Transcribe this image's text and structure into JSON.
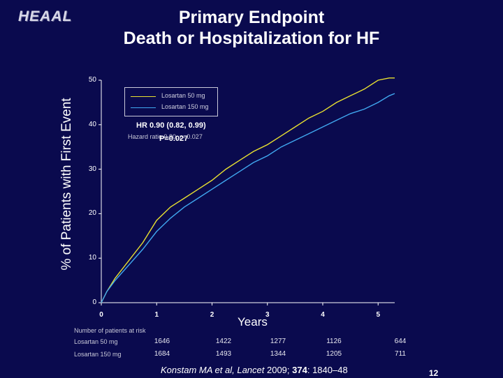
{
  "logo": "HEAAL",
  "title_line1": "Primary Endpoint",
  "title_line2": "Death or Hospitalization for HF",
  "chart_data": {
    "type": "line",
    "xlabel": "Years",
    "ylabel": "% of Patients with First Event",
    "xlim": [
      0,
      5.3
    ],
    "ylim": [
      0,
      50
    ],
    "xticks": [
      "0",
      "1",
      "2",
      "3",
      "4",
      "5"
    ],
    "yticks": [
      "0",
      "10",
      "20",
      "30",
      "40",
      "50"
    ],
    "grid": false,
    "legend_position": "top-left",
    "series": [
      {
        "name": "Losartan 50 mg",
        "color": "#e8e030",
        "x": [
          0,
          0.1,
          0.25,
          0.5,
          0.75,
          1.0,
          1.25,
          1.5,
          1.75,
          2.0,
          2.25,
          2.5,
          2.75,
          3.0,
          3.25,
          3.5,
          3.75,
          4.0,
          4.25,
          4.5,
          4.75,
          5.0,
          5.2,
          5.3
        ],
        "y": [
          0,
          2.5,
          5.5,
          9.5,
          13.5,
          18.5,
          21.5,
          23.5,
          25.5,
          27.5,
          30,
          32,
          34,
          35.5,
          37.5,
          39.5,
          41.5,
          43,
          45,
          46.5,
          48,
          50,
          50.5,
          50.5
        ]
      },
      {
        "name": "Losartan 150 mg",
        "color": "#40a8f0",
        "x": [
          0,
          0.1,
          0.25,
          0.5,
          0.75,
          1.0,
          1.25,
          1.5,
          1.75,
          2.0,
          2.25,
          2.5,
          2.75,
          3.0,
          3.25,
          3.5,
          3.75,
          4.0,
          4.25,
          4.5,
          4.75,
          5.0,
          5.2,
          5.3
        ],
        "y": [
          0,
          2.5,
          5,
          8.5,
          12,
          16,
          19,
          21.5,
          23.5,
          25.5,
          27.5,
          29.5,
          31.5,
          33,
          35,
          36.5,
          38,
          39.5,
          41,
          42.5,
          43.5,
          45,
          46.5,
          47
        ]
      }
    ],
    "annotations": {
      "hr": "HR 0.90 (0.82, 0.99)",
      "hr_note": "Hazard ratio 0.90, p=0.027",
      "p_value": "P=0.027"
    },
    "risk_table": {
      "title": "Number of patients at risk",
      "rows": [
        {
          "label": "Losartan 50 mg",
          "values": [
            "1646",
            "1422",
            "1277",
            "1126",
            "644"
          ]
        },
        {
          "label": "Losartan 150 mg",
          "values": [
            "1684",
            "1493",
            "1344",
            "1205",
            "711"
          ]
        }
      ]
    }
  },
  "citation": {
    "authors": "Konstam MA et al, Lancet ",
    "year": "2009",
    "sep": "; ",
    "volume": "374",
    "pages": ": 1840–48"
  },
  "page_number": "12"
}
